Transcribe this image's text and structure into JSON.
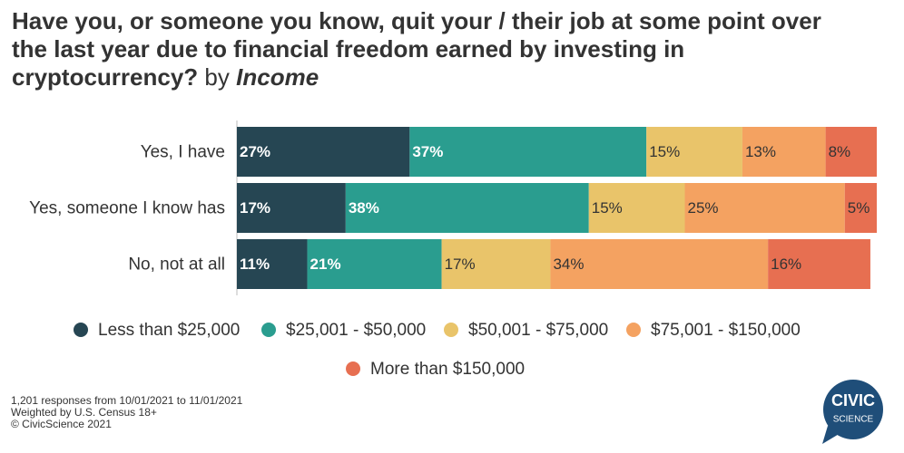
{
  "chart_data": {
    "type": "stacked-bar-horizontal",
    "title": "Have you, or someone you know, quit your / their job at some point over the last year due to financial freedom earned by investing in cryptocurrency?",
    "title_by": "by",
    "title_group": "Income",
    "categories": [
      "Yes, I have",
      "Yes, someone I know has",
      "No, not at all"
    ],
    "xlim": [
      0,
      100
    ],
    "series": [
      {
        "name": "Less than $25,000",
        "color": "#264653",
        "values": [
          27,
          17,
          11
        ],
        "value_labels": [
          "27%",
          "17%",
          "11%"
        ]
      },
      {
        "name": "$25,001 - $50,000",
        "color": "#2a9d8f",
        "values": [
          37,
          38,
          21
        ],
        "value_labels": [
          "37%",
          "38%",
          "21%"
        ]
      },
      {
        "name": "$50,001 - $75,000",
        "color": "#e9c46a",
        "values": [
          15,
          15,
          17
        ],
        "value_labels": [
          "15%",
          "15%",
          "17%"
        ]
      },
      {
        "name": "$75,001 - $150,000",
        "color": "#f4a261",
        "values": [
          13,
          25,
          34
        ],
        "value_labels": [
          "13%",
          "25%",
          "34%"
        ]
      },
      {
        "name": "More than $150,000",
        "color": "#e76f51",
        "values": [
          8,
          5,
          16
        ],
        "value_labels": [
          "8%",
          "5%",
          "16%"
        ]
      }
    ],
    "footnotes": [
      "1,201 responses from 10/01/2021 to 11/01/2021",
      "Weighted by U.S. Census 18+",
      "© CivicScience 2021"
    ],
    "logo": [
      "CIVIC",
      "SCIENCE"
    ]
  }
}
